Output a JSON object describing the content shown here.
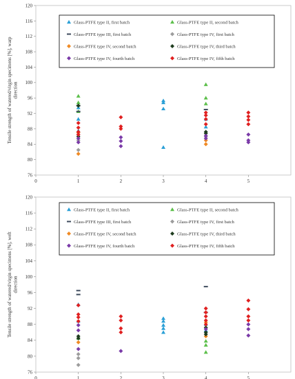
{
  "chart_data": [
    {
      "type": "scatter",
      "ylabel_lines": [
        "Tensile strength of watered/virgin specimens [%], warp",
        "direction"
      ],
      "xlim": [
        0,
        6
      ],
      "ylim": [
        76,
        120
      ],
      "x_ticks": [
        0,
        1,
        2,
        3,
        4,
        5
      ],
      "y_ticks": [
        76,
        80,
        84,
        88,
        92,
        96,
        100,
        104,
        108,
        112,
        116,
        120
      ],
      "grid": false,
      "legend_position": "top-center",
      "series": [
        {
          "name": "Glass-PTFE type II, first batch",
          "color": "#2a9fd6",
          "marker": "triangle",
          "x": [
            1,
            1,
            1,
            3,
            3,
            3,
            3,
            4,
            4
          ],
          "y": [
            90.5,
            93.5,
            87.5,
            95.3,
            94.8,
            93.2,
            83.2,
            88.5,
            90.5
          ]
        },
        {
          "name": "Glass-PTFE type II, second batch",
          "color": "#5cbf4a",
          "marker": "triangle",
          "x": [
            1,
            1,
            1,
            4,
            4,
            4
          ],
          "y": [
            96.5,
            94.8,
            92.5,
            99.5,
            96.0,
            94.5
          ]
        },
        {
          "name": "Glass-PTFE type III, first batch",
          "color": "#3d4a5c",
          "marker": "dash",
          "x": [
            1,
            1,
            4
          ],
          "y": [
            92.5,
            94.0,
            93.0
          ]
        },
        {
          "name": "Glass-PTFE type IV, first batch",
          "color": "#9c9c9c",
          "marker": "diamond",
          "x": [
            1,
            1,
            4
          ],
          "y": [
            82.5,
            85.0,
            86.0
          ]
        },
        {
          "name": "Glass-PTFE type IV, second batch",
          "color": "#f08a24",
          "marker": "diamond",
          "x": [
            1,
            1,
            4,
            4
          ],
          "y": [
            81.5,
            87.0,
            84.0,
            85.0
          ]
        },
        {
          "name": "Glass-PTFE type IV, third batch",
          "color": "#1f3d1f",
          "marker": "diamond",
          "x": [
            1,
            1,
            4,
            4
          ],
          "y": [
            94.0,
            86.0,
            87.2,
            86.8
          ]
        },
        {
          "name": "Glass-PTFE type IV, fourth batch",
          "color": "#7a3aa8",
          "marker": "diamond",
          "x": [
            1,
            1,
            1,
            2,
            2,
            2,
            4,
            4,
            5,
            5,
            5
          ],
          "y": [
            84.5,
            85.5,
            86.5,
            85.8,
            84.8,
            83.5,
            85.5,
            86.2,
            86.5,
            85.0,
            84.5
          ]
        },
        {
          "name": "Glass-PTFE type IV, fifth batch",
          "color": "#e02020",
          "marker": "diamond",
          "x": [
            1,
            1,
            1,
            1,
            2,
            2,
            2,
            4,
            4,
            4,
            4,
            5,
            5,
            5,
            5
          ],
          "y": [
            89.5,
            88.3,
            87.2,
            86.5,
            91.0,
            88.6,
            88.0,
            92.2,
            91.5,
            90.5,
            89.2,
            92.2,
            91.2,
            90.3,
            89.2
          ]
        }
      ]
    },
    {
      "type": "scatter",
      "ylabel_lines": [
        "Tensile strength of watered/virgin specimens [%], weft",
        "direction"
      ],
      "xlim": [
        0,
        6
      ],
      "ylim": [
        76,
        120
      ],
      "x_ticks": [
        0,
        1,
        2,
        3,
        4,
        5
      ],
      "y_ticks": [
        76,
        80,
        84,
        88,
        92,
        96,
        100,
        104,
        108,
        112,
        116,
        120
      ],
      "grid": false,
      "legend_position": "top-center",
      "series": [
        {
          "name": "Glass-PTFE type II, first batch",
          "color": "#2a9fd6",
          "marker": "triangle",
          "x": [
            1,
            1,
            3,
            3,
            3,
            3,
            3,
            4,
            4
          ],
          "y": [
            93.0,
            88.8,
            89.5,
            88.8,
            87.8,
            87.0,
            86.0,
            88.0,
            86.5
          ]
        },
        {
          "name": "Glass-PTFE type II, second batch",
          "color": "#5cbf4a",
          "marker": "triangle",
          "x": [
            1,
            4,
            4,
            4
          ],
          "y": [
            84.5,
            83.8,
            82.8,
            81.0
          ]
        },
        {
          "name": "Glass-PTFE type III, first batch",
          "color": "#3d4a5c",
          "marker": "dash",
          "x": [
            1,
            1,
            4,
            4
          ],
          "y": [
            96.5,
            95.5,
            97.5,
            91.0
          ]
        },
        {
          "name": "Glass-PTFE type IV, first batch",
          "color": "#9c9c9c",
          "marker": "diamond",
          "x": [
            1,
            1,
            1
          ],
          "y": [
            80.5,
            79.5,
            77.8
          ]
        },
        {
          "name": "Glass-PTFE type IV, second batch",
          "color": "#f08a24",
          "marker": "diamond",
          "x": [
            1,
            4,
            4
          ],
          "y": [
            83.5,
            88.5,
            85.0
          ]
        },
        {
          "name": "Glass-PTFE type IV, third batch",
          "color": "#1f3d1f",
          "marker": "diamond",
          "x": [
            1,
            1,
            4,
            4,
            4
          ],
          "y": [
            85.0,
            84.5,
            87.2,
            86.0,
            85.5
          ]
        },
        {
          "name": "Glass-PTFE type IV, fourth batch",
          "color": "#7a3aa8",
          "marker": "diamond",
          "x": [
            1,
            1,
            1,
            2,
            4,
            5,
            5,
            5
          ],
          "y": [
            86.5,
            87.8,
            81.8,
            81.3,
            86.8,
            88.0,
            86.8,
            85.2
          ]
        },
        {
          "name": "Glass-PTFE type IV, fifth batch",
          "color": "#e02020",
          "marker": "diamond",
          "x": [
            1,
            1,
            1,
            1,
            2,
            2,
            2,
            2,
            4,
            4,
            4,
            4,
            4,
            5,
            5,
            5,
            5
          ],
          "y": [
            92.8,
            90.5,
            89.8,
            88.8,
            90.0,
            89.0,
            87.0,
            86.0,
            92.0,
            91.0,
            90.0,
            89.0,
            88.0,
            94.0,
            91.8,
            90.0,
            89.0
          ]
        }
      ]
    }
  ]
}
